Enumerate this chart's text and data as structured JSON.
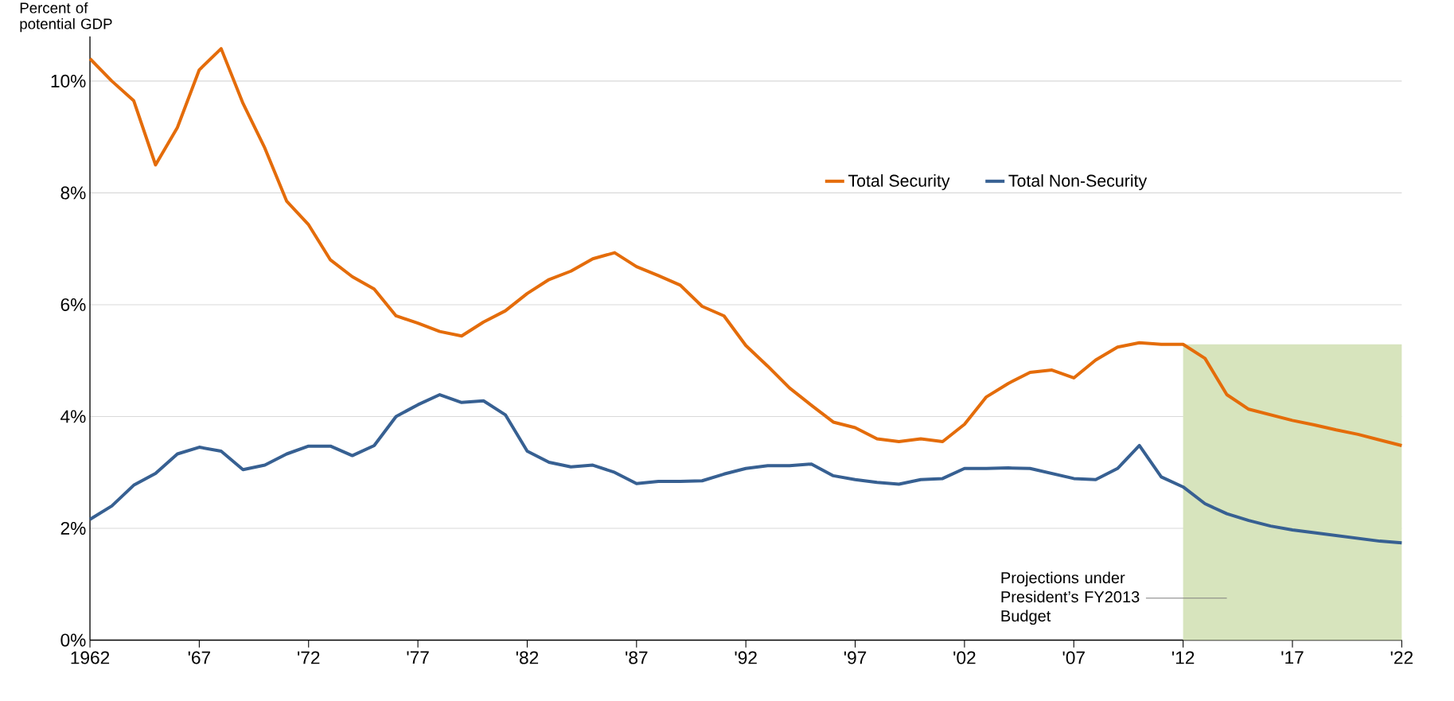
{
  "chart_data": {
    "type": "line",
    "ylabel": "Percent of potential GDP",
    "x": [
      1962,
      1963,
      1964,
      1965,
      1966,
      1967,
      1968,
      1969,
      1970,
      1971,
      1972,
      1973,
      1974,
      1975,
      1976,
      1977,
      1978,
      1979,
      1980,
      1981,
      1982,
      1983,
      1984,
      1985,
      1986,
      1987,
      1988,
      1989,
      1990,
      1991,
      1992,
      1993,
      1994,
      1995,
      1996,
      1997,
      1998,
      1999,
      2000,
      2001,
      2002,
      2003,
      2004,
      2005,
      2006,
      2007,
      2008,
      2009,
      2010,
      2011,
      2012,
      2013,
      2014,
      2015,
      2016,
      2017,
      2018,
      2019,
      2020,
      2021,
      2022
    ],
    "series": [
      {
        "name": "Total Security",
        "color": "#e46c0a",
        "values": [
          10.4,
          10.0,
          9.65,
          8.5,
          9.17,
          10.2,
          10.58,
          9.6,
          8.8,
          7.85,
          7.43,
          6.8,
          6.5,
          6.28,
          5.8,
          5.67,
          5.52,
          5.44,
          5.69,
          5.89,
          6.2,
          6.45,
          6.6,
          6.82,
          6.93,
          6.68,
          6.52,
          6.35,
          5.97,
          5.8,
          5.27,
          4.9,
          4.51,
          4.2,
          3.9,
          3.8,
          3.6,
          3.55,
          3.6,
          3.55,
          3.86,
          4.35,
          4.59,
          4.79,
          4.83,
          4.69,
          5.01,
          5.24,
          5.32,
          5.29,
          5.29,
          5.04,
          4.39,
          4.13,
          4.03,
          3.93,
          3.85,
          3.76,
          3.68,
          3.58,
          3.48
        ]
      },
      {
        "name": "Total Non-Security",
        "color": "#376092",
        "values": [
          2.16,
          2.4,
          2.77,
          2.98,
          3.33,
          3.45,
          3.38,
          3.05,
          3.13,
          3.33,
          3.47,
          3.47,
          3.3,
          3.48,
          4.0,
          4.21,
          4.39,
          4.25,
          4.28,
          4.03,
          3.38,
          3.18,
          3.1,
          3.13,
          3.0,
          2.8,
          2.84,
          2.84,
          2.85,
          2.97,
          3.07,
          3.12,
          3.12,
          3.15,
          2.94,
          2.87,
          2.82,
          2.79,
          2.87,
          2.89,
          3.07,
          3.07,
          3.08,
          3.07,
          2.98,
          2.89,
          2.87,
          3.07,
          3.48,
          2.92,
          2.74,
          2.44,
          2.26,
          2.14,
          2.04,
          1.97,
          1.92,
          1.87,
          1.82,
          1.77,
          1.74
        ]
      }
    ],
    "xlim": [
      1962,
      2022
    ],
    "ylim": [
      0,
      10.8
    ],
    "xticks": [
      1962,
      {
        "value": 1967,
        "label": "'67"
      },
      {
        "value": 1972,
        "label": "'72"
      },
      {
        "value": 1977,
        "label": "'77"
      },
      {
        "value": 1982,
        "label": "'82"
      },
      {
        "value": 1987,
        "label": "'87"
      },
      {
        "value": 1992,
        "label": "'92"
      },
      {
        "value": 1997,
        "label": "'97"
      },
      {
        "value": 2002,
        "label": "'02"
      },
      {
        "value": 2007,
        "label": "'07"
      },
      {
        "value": 2012,
        "label": "'12"
      },
      {
        "value": 2017,
        "label": "'17"
      },
      {
        "value": 2022,
        "label": "'22"
      }
    ],
    "yticks": [
      {
        "value": 0,
        "label": "0%"
      },
      {
        "value": 2,
        "label": "2%"
      },
      {
        "value": 4,
        "label": "4%"
      },
      {
        "value": 6,
        "label": "6%"
      },
      {
        "value": 8,
        "label": "8%"
      },
      {
        "value": 10,
        "label": "10%"
      }
    ],
    "bands": [
      {
        "axis": "x",
        "from": 2012,
        "to": 2022,
        "label": "Projections under President’s FY2013 Budget",
        "color": "#d7e4bd"
      }
    ],
    "grid": "y",
    "legend": "top right",
    "marker": "none",
    "line_style": "solid"
  }
}
